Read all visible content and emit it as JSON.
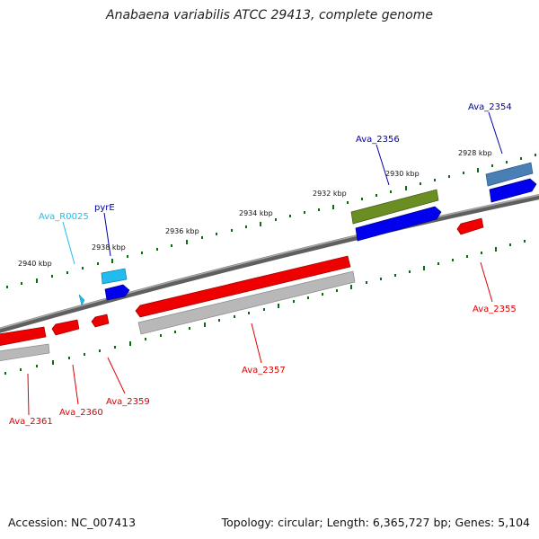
{
  "title": "Anabaena variabilis ATCC 29413, complete genome",
  "footer": {
    "accession": "Accession: NC_007413",
    "stats": "Topology: circular; Length: 6,365,727 bp; Genes: 5,104"
  },
  "colors": {
    "backbone": "#7a7a7a",
    "forward_gene": "#0000ee",
    "reverse_gene": "#ee0000",
    "reverse_shadow": "#b8b8b8",
    "trna": "#22bbee",
    "olive_feature": "#6b8e23",
    "steel_feature": "#4a7fb5",
    "tick": "#0a6e0a"
  },
  "scale": {
    "labels": [
      "2940 kbp",
      "2938 kbp",
      "2936 kbp",
      "2934 kbp",
      "2932 kbp",
      "2930 kbp",
      "2928 kbp"
    ]
  },
  "genes": [
    {
      "id": "Ava_2361",
      "label": "Ava_2361",
      "strand": "reverse",
      "color": "red"
    },
    {
      "id": "Ava_2360",
      "label": "Ava_2360",
      "strand": "reverse",
      "color": "red"
    },
    {
      "id": "Ava_2359",
      "label": "Ava_2359",
      "strand": "reverse",
      "color": "red"
    },
    {
      "id": "Ava_R0025",
      "label": "Ava_R0025",
      "strand": "reverse",
      "color": "lightblue"
    },
    {
      "id": "pyrE",
      "label": "pyrE",
      "strand": "forward",
      "color": "blue"
    },
    {
      "id": "Ava_2357",
      "label": "Ava_2357",
      "strand": "reverse",
      "color": "red"
    },
    {
      "id": "Ava_2356",
      "label": "Ava_2356",
      "strand": "forward",
      "color": "blue"
    },
    {
      "id": "Ava_2355",
      "label": "Ava_2355",
      "strand": "reverse",
      "color": "red"
    },
    {
      "id": "Ava_2354",
      "label": "Ava_2354",
      "strand": "forward",
      "color": "blue"
    }
  ]
}
